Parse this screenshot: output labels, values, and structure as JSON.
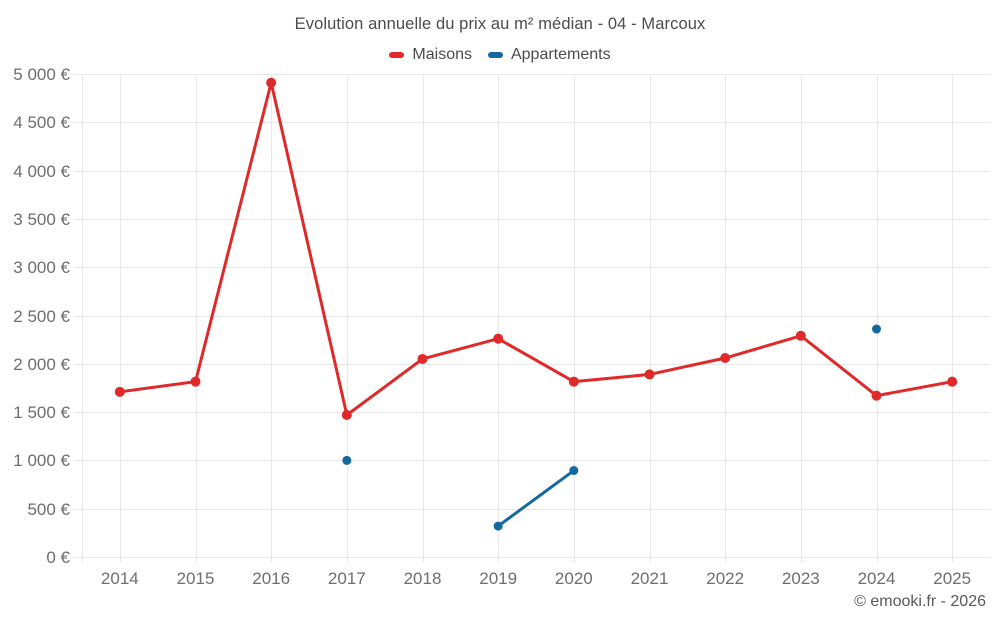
{
  "title": "Evolution annuelle du prix au m² médian - 04 - Marcoux",
  "footer": "© emooki.fr - 2026",
  "legend": [
    {
      "label": "Maisons",
      "color": "#e02929"
    },
    {
      "label": "Appartements",
      "color": "#15699f"
    }
  ],
  "chart_data": {
    "type": "line",
    "title": "Evolution annuelle du prix au m² médian - 04 - Marcoux",
    "categories": [
      "2014",
      "2015",
      "2016",
      "2017",
      "2018",
      "2019",
      "2020",
      "2021",
      "2022",
      "2023",
      "2024",
      "2025"
    ],
    "series": [
      {
        "name": "Maisons",
        "color": "#e02929",
        "values": [
          1710,
          1815,
          4910,
          1470,
          2050,
          2260,
          1815,
          1890,
          2060,
          2290,
          1670,
          1815
        ]
      },
      {
        "name": "Appartements",
        "color": "#15699f",
        "values": [
          null,
          null,
          null,
          1000,
          null,
          320,
          895,
          null,
          null,
          null,
          2360,
          null
        ]
      }
    ],
    "xlabel": "",
    "ylabel": "",
    "ylim": [
      0,
      5000
    ],
    "ytick_step": 500,
    "ytick_labels": [
      "0 €",
      "500 €",
      "1 000 €",
      "1 500 €",
      "2 000 €",
      "2 500 €",
      "3 000 €",
      "3 500 €",
      "4 000 €",
      "4 500 €",
      "5 000 €"
    ],
    "grid": true,
    "legend_position": "top",
    "currency": "€",
    "tick_color": "#6e6e6e",
    "grid_color": "#e8e8e8"
  }
}
